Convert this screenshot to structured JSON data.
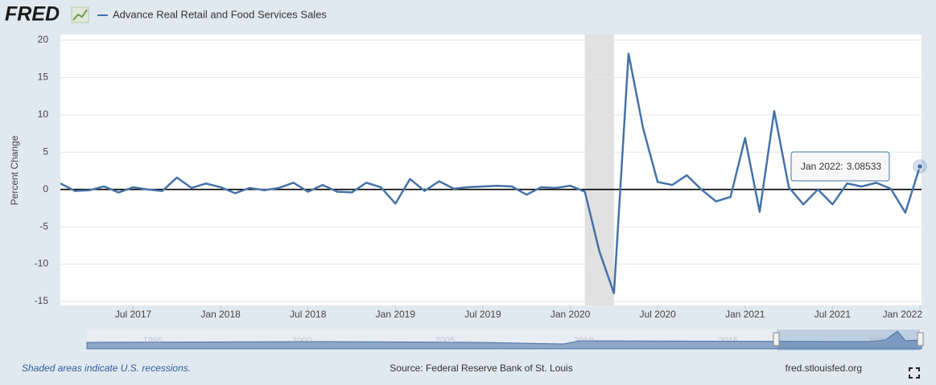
{
  "brand": "FRED",
  "chart_data": {
    "type": "line",
    "series": [
      {
        "name": "Advance Real Retail and Food Services Sales",
        "color": "#4572a7",
        "values": [
          0.8,
          -0.2,
          -0.1,
          0.4,
          -0.4,
          0.3,
          0.0,
          -0.2,
          1.6,
          0.2,
          0.8,
          0.3,
          -0.5,
          0.2,
          -0.1,
          0.2,
          0.9,
          -0.3,
          0.6,
          -0.3,
          -0.4,
          0.9,
          0.3,
          -1.9,
          1.4,
          -0.2,
          1.1,
          0.1,
          0.3,
          0.4,
          0.5,
          0.4,
          -0.7,
          0.3,
          0.2,
          0.5,
          -0.3,
          -8.3,
          -13.9,
          18.2,
          8.2,
          1.0,
          0.6,
          1.9,
          0.0,
          -1.6,
          -1.0,
          6.9,
          -3.0,
          10.5,
          0.3,
          -2.0,
          0.0,
          -2.0,
          0.8,
          0.4,
          0.9,
          0.1,
          -3.1,
          3.08533
        ]
      }
    ],
    "x": [
      "2017-02",
      "2017-03",
      "2017-04",
      "2017-05",
      "2017-06",
      "2017-07",
      "2017-08",
      "2017-09",
      "2017-10",
      "2017-11",
      "2017-12",
      "2018-01",
      "2018-02",
      "2018-03",
      "2018-04",
      "2018-05",
      "2018-06",
      "2018-07",
      "2018-08",
      "2018-09",
      "2018-10",
      "2018-11",
      "2018-12",
      "2019-01",
      "2019-02",
      "2019-03",
      "2019-04",
      "2019-05",
      "2019-06",
      "2019-07",
      "2019-08",
      "2019-09",
      "2019-10",
      "2019-11",
      "2019-12",
      "2020-01",
      "2020-02",
      "2020-03",
      "2020-04",
      "2020-05",
      "2020-06",
      "2020-07",
      "2020-08",
      "2020-09",
      "2020-10",
      "2020-11",
      "2020-12",
      "2021-01",
      "2021-02",
      "2021-03",
      "2021-04",
      "2021-05",
      "2021-06",
      "2021-07",
      "2021-08",
      "2021-09",
      "2021-10",
      "2021-11",
      "2021-12",
      "2022-01"
    ],
    "xticks": [
      {
        "value": "2017-07",
        "label": "Jul 2017"
      },
      {
        "value": "2018-01",
        "label": "Jan 2018"
      },
      {
        "value": "2018-07",
        "label": "Jul 2018"
      },
      {
        "value": "2019-01",
        "label": "Jan 2019"
      },
      {
        "value": "2019-07",
        "label": "Jul 2019"
      },
      {
        "value": "2020-01",
        "label": "Jan 2020"
      },
      {
        "value": "2020-07",
        "label": "Jul 2020"
      },
      {
        "value": "2021-01",
        "label": "Jan 2021"
      },
      {
        "value": "2021-07",
        "label": "Jul 2021"
      },
      {
        "value": "2022-01",
        "label": "Jan 2022"
      }
    ],
    "ylabel": "Percent Change",
    "ylim": [
      -15,
      20
    ],
    "yticks": [
      -15,
      -10,
      -5,
      0,
      5,
      10,
      15,
      20
    ],
    "grid": true,
    "recessions": [
      {
        "start": "2020-02",
        "end": "2020-04"
      }
    ],
    "tooltip": {
      "label": "Jan 2022:",
      "index": 59
    },
    "navigator_labels": [
      "1995",
      "2000",
      "2005",
      "2010",
      "2015",
      "2020"
    ]
  },
  "footer": {
    "note": "Shaded areas indicate U.S. recessions.",
    "source": "Source: Federal Reserve Bank of St. Louis",
    "site": "fred.stlouisfed.org"
  }
}
